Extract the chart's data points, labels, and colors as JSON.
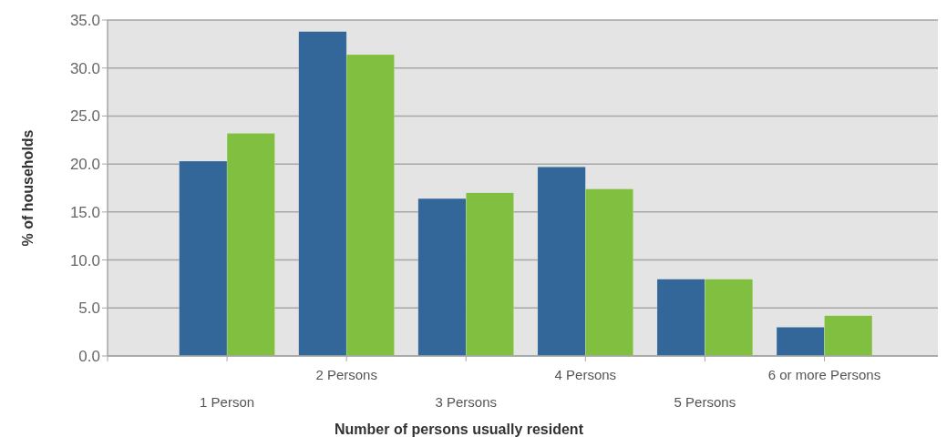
{
  "chart_data": {
    "type": "bar",
    "xlabel": "Number of persons usually resident",
    "ylabel": "% of households",
    "categories": [
      "1 Person",
      "2 Persons",
      "3 Persons",
      "4 Persons",
      "5 Persons",
      "6 or more Persons"
    ],
    "series": [
      {
        "color": "#336699",
        "values": [
          20.3,
          33.8,
          16.4,
          19.7,
          8.0,
          3.0
        ]
      },
      {
        "color": "#80bf40",
        "values": [
          23.2,
          31.4,
          17.0,
          17.4,
          8.0,
          4.2
        ]
      }
    ],
    "ylim": [
      0,
      35
    ],
    "yticks": [
      {
        "value": 0,
        "label": "0.0"
      },
      {
        "value": 5,
        "label": "5.0"
      },
      {
        "value": 10,
        "label": "10.0"
      },
      {
        "value": 15,
        "label": "15.0"
      },
      {
        "value": 20,
        "label": "20.0"
      },
      {
        "value": 25,
        "label": "25.0"
      },
      {
        "value": 30,
        "label": "30.0"
      },
      {
        "value": 35,
        "label": "35.0"
      }
    ],
    "grid": "y"
  }
}
